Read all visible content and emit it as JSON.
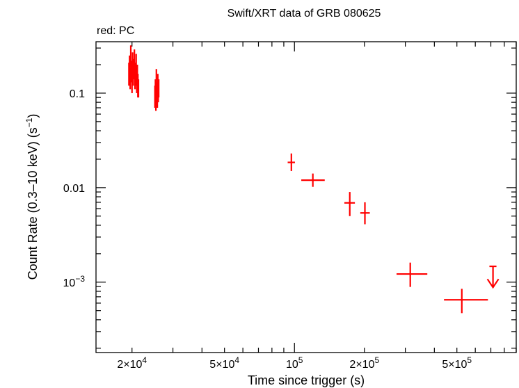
{
  "chart_data": {
    "type": "scatter",
    "title": "Swift/XRT data of GRB 080625",
    "subtitle": "red: PC",
    "xlabel": "Time since trigger (s)",
    "ylabel": "Count Rate (0.3–10 keV) (s",
    "ylabel_sup": "−1",
    "ylabel_end": ")",
    "x_scale": "log",
    "y_scale": "log",
    "xlim": [
      14000,
      900000
    ],
    "ylim": [
      0.00018,
      0.35
    ],
    "grid": false,
    "series_color": "#ff0000",
    "x_ticks": [
      {
        "value": 20000,
        "label": "2×10",
        "exp": "4"
      },
      {
        "value": 50000,
        "label": "5×10",
        "exp": "4"
      },
      {
        "value": 100000,
        "label": "10",
        "exp": "5"
      },
      {
        "value": 200000,
        "label": "2×10",
        "exp": "5"
      },
      {
        "value": 500000,
        "label": "5×10",
        "exp": "5"
      }
    ],
    "y_ticks": [
      {
        "value": 0.1,
        "label": "0.1",
        "exp": ""
      },
      {
        "value": 0.01,
        "label": "0.01",
        "exp": ""
      },
      {
        "value": 0.001,
        "label": "10",
        "exp": "−3"
      }
    ],
    "series": [
      {
        "points": [
          {
            "x": 19400,
            "y": 0.16,
            "xerr": [
              60,
              60
            ],
            "yerr": [
              0.04,
              0.05
            ]
          },
          {
            "x": 19520,
            "y": 0.19,
            "xerr": [
              60,
              60
            ],
            "yerr": [
              0.04,
              0.06
            ]
          },
          {
            "x": 19640,
            "y": 0.14,
            "xerr": [
              60,
              60
            ],
            "yerr": [
              0.03,
              0.05
            ]
          },
          {
            "x": 19760,
            "y": 0.24,
            "xerr": [
              60,
              60
            ],
            "yerr": [
              0.05,
              0.08
            ]
          },
          {
            "x": 19880,
            "y": 0.17,
            "xerr": [
              60,
              60
            ],
            "yerr": [
              0.04,
              0.05
            ]
          },
          {
            "x": 20000,
            "y": 0.13,
            "xerr": [
              60,
              60
            ],
            "yerr": [
              0.03,
              0.04
            ]
          },
          {
            "x": 20120,
            "y": 0.21,
            "xerr": [
              60,
              60
            ],
            "yerr": [
              0.05,
              0.06
            ]
          },
          {
            "x": 20240,
            "y": 0.15,
            "xerr": [
              60,
              60
            ],
            "yerr": [
              0.03,
              0.05
            ]
          },
          {
            "x": 20360,
            "y": 0.18,
            "xerr": [
              60,
              60
            ],
            "yerr": [
              0.04,
              0.05
            ]
          },
          {
            "x": 20480,
            "y": 0.22,
            "xerr": [
              60,
              60
            ],
            "yerr": [
              0.05,
              0.07
            ]
          },
          {
            "x": 20600,
            "y": 0.14,
            "xerr": [
              60,
              60
            ],
            "yerr": [
              0.03,
              0.04
            ]
          },
          {
            "x": 20720,
            "y": 0.16,
            "xerr": [
              60,
              60
            ],
            "yerr": [
              0.04,
              0.05
            ]
          },
          {
            "x": 20840,
            "y": 0.2,
            "xerr": [
              60,
              60
            ],
            "yerr": [
              0.04,
              0.06
            ]
          },
          {
            "x": 20960,
            "y": 0.13,
            "xerr": [
              60,
              60
            ],
            "yerr": [
              0.03,
              0.04
            ]
          },
          {
            "x": 21080,
            "y": 0.15,
            "xerr": [
              60,
              60
            ],
            "yerr": [
              0.03,
              0.05
            ]
          },
          {
            "x": 21200,
            "y": 0.12,
            "xerr": [
              60,
              60
            ],
            "yerr": [
              0.03,
              0.04
            ]
          },
          {
            "x": 21320,
            "y": 0.11,
            "xerr": [
              60,
              60
            ],
            "yerr": [
              0.02,
              0.03
            ]
          },
          {
            "x": 25100,
            "y": 0.09,
            "xerr": [
              60,
              60
            ],
            "yerr": [
              0.02,
              0.03
            ]
          },
          {
            "x": 25220,
            "y": 0.11,
            "xerr": [
              60,
              60
            ],
            "yerr": [
              0.02,
              0.03
            ]
          },
          {
            "x": 25340,
            "y": 0.08,
            "xerr": [
              60,
              60
            ],
            "yerr": [
              0.015,
              0.025
            ]
          },
          {
            "x": 25460,
            "y": 0.13,
            "xerr": [
              60,
              60
            ],
            "yerr": [
              0.03,
              0.05
            ]
          },
          {
            "x": 25580,
            "y": 0.1,
            "xerr": [
              60,
              60
            ],
            "yerr": [
              0.02,
              0.03
            ]
          },
          {
            "x": 25700,
            "y": 0.085,
            "xerr": [
              60,
              60
            ],
            "yerr": [
              0.015,
              0.025
            ]
          },
          {
            "x": 25820,
            "y": 0.12,
            "xerr": [
              60,
              60
            ],
            "yerr": [
              0.03,
              0.04
            ]
          },
          {
            "x": 25940,
            "y": 0.1,
            "xerr": [
              60,
              60
            ],
            "yerr": [
              0.02,
              0.03
            ]
          },
          {
            "x": 26060,
            "y": 0.11,
            "xerr": [
              60,
              60
            ],
            "yerr": [
              0.02,
              0.03
            ]
          },
          {
            "x": 97000,
            "y": 0.0185,
            "xerr": [
              3500,
              3500
            ],
            "yerr": [
              0.0035,
              0.0045
            ]
          },
          {
            "x": 120000,
            "y": 0.012,
            "xerr": [
              13000,
              15000
            ],
            "yerr": [
              0.0018,
              0.0021
            ]
          },
          {
            "x": 173000,
            "y": 0.0069,
            "xerr": [
              9000,
              9000
            ],
            "yerr": [
              0.0019,
              0.0021
            ]
          },
          {
            "x": 201000,
            "y": 0.0054,
            "xerr": [
              9000,
              10000
            ],
            "yerr": [
              0.0013,
              0.0016
            ]
          },
          {
            "x": 315000,
            "y": 0.00122,
            "xerr": [
              40000,
              58000
            ],
            "yerr": [
              0.00033,
              0.00039
            ]
          },
          {
            "x": 525000,
            "y": 0.00065,
            "xerr": [
              85000,
              155000
            ],
            "yerr": [
              0.00018,
              0.0002
            ]
          }
        ],
        "upper_limits": [
          {
            "x": 715000,
            "y": 0.00147,
            "xerr": [
              25000,
              25000
            ],
            "arrow_to": 0.00088
          }
        ]
      }
    ]
  }
}
